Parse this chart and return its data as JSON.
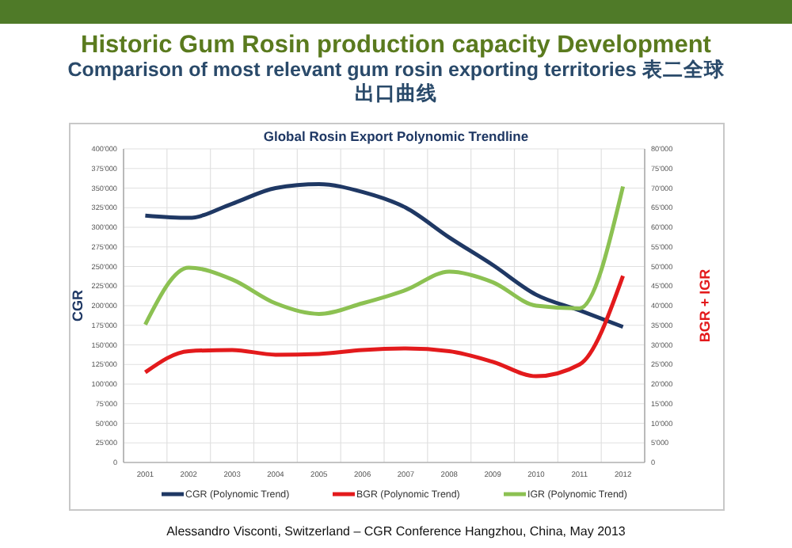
{
  "chart_data": {
    "type": "line",
    "title": "Historic Gum Rosin production capacity Development",
    "subtitle": "Comparison of most relevant gum rosin exporting territories 表二全球出口曲线",
    "annotations": [
      "Global Rosin Export Polynomic Trendline",
      "Alessandro Visconti, Switzerland – CGR Conference Hangzhou, China, May 2013"
    ],
    "ylabel": "CGR",
    "y2label": "BGR + IGR",
    "categories": [
      "2001",
      "2002",
      "2003",
      "2004",
      "2005",
      "2006",
      "2007",
      "2008",
      "2009",
      "2010",
      "2011",
      "2012"
    ],
    "series": [
      {
        "name": "CGR (Polynomic Trend)",
        "color": "#1f3864",
        "values": [
          315000,
          312000,
          330000,
          350000,
          355000,
          345000,
          325000,
          287000,
          252000,
          214000,
          194000,
          173000
        ]
      },
      {
        "name": "BGR (Polynomic Trend)",
        "color": "#e31a1c",
        "axis": "y2",
        "values": [
          23000,
          28400,
          28700,
          27500,
          27700,
          28700,
          29100,
          28400,
          25700,
          22000,
          25000,
          47600
        ]
      },
      {
        "name": "IGR (Polynomic Trend)",
        "color": "#8cc152",
        "axis": "y2",
        "values": [
          35200,
          49700,
          46700,
          40600,
          37900,
          40600,
          44000,
          48700,
          46000,
          40000,
          39300,
          70400
        ]
      }
    ],
    "ylim": [
      0,
      400000
    ],
    "yticks": [
      {
        "value": 0,
        "label": "0"
      },
      {
        "value": 25000,
        "label": "25'000"
      },
      {
        "value": 50000,
        "label": "50'000"
      },
      {
        "value": 75000,
        "label": "75'000"
      },
      {
        "value": 100000,
        "label": "100'000"
      },
      {
        "value": 125000,
        "label": "125'000"
      },
      {
        "value": 150000,
        "label": "150'000"
      },
      {
        "value": 175000,
        "label": "175'000"
      },
      {
        "value": 200000,
        "label": "200'000"
      },
      {
        "value": 225000,
        "label": "225'000"
      },
      {
        "value": 250000,
        "label": "250'000"
      },
      {
        "value": 275000,
        "label": "275'000"
      },
      {
        "value": 300000,
        "label": "300'000"
      },
      {
        "value": 325000,
        "label": "325'000"
      },
      {
        "value": 350000,
        "label": "350'000"
      },
      {
        "value": 375000,
        "label": "375'000"
      },
      {
        "value": 400000,
        "label": "400'000"
      }
    ],
    "y2lim": [
      0,
      80000
    ],
    "y2ticks": [
      {
        "value": 0,
        "label": "0"
      },
      {
        "value": 5000,
        "label": "5'000"
      },
      {
        "value": 10000,
        "label": "10'000"
      },
      {
        "value": 15000,
        "label": "15'000"
      },
      {
        "value": 20000,
        "label": "20'000"
      },
      {
        "value": 25000,
        "label": "25'000"
      },
      {
        "value": 30000,
        "label": "30'000"
      },
      {
        "value": 35000,
        "label": "35'000"
      },
      {
        "value": 40000,
        "label": "40'000"
      },
      {
        "value": 45000,
        "label": "45'000"
      },
      {
        "value": 50000,
        "label": "50'000"
      },
      {
        "value": 55000,
        "label": "55'000"
      },
      {
        "value": 60000,
        "label": "60'000"
      },
      {
        "value": 65000,
        "label": "65'000"
      },
      {
        "value": 70000,
        "label": "70'000"
      },
      {
        "value": 75000,
        "label": "75'000"
      },
      {
        "value": 80000,
        "label": "80'000"
      }
    ],
    "grid": true,
    "legend": "bottom",
    "marker": "none",
    "line_style": "solid"
  }
}
